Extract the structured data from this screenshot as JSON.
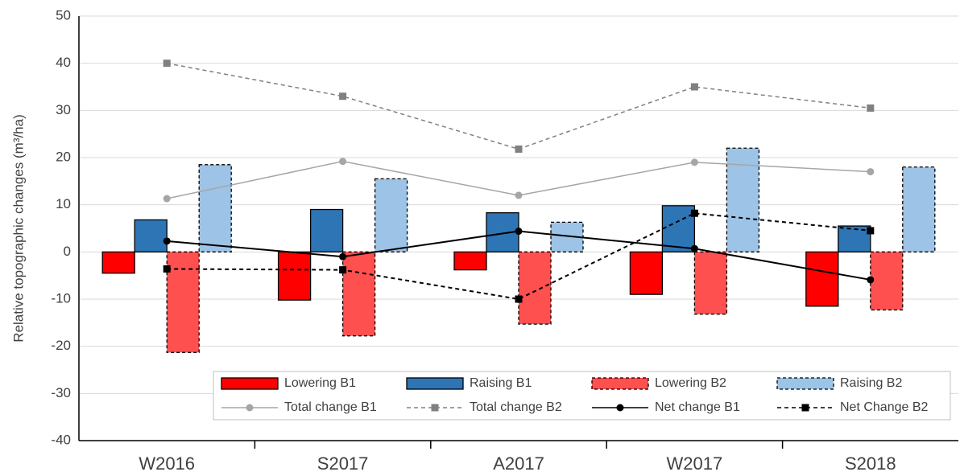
{
  "chart_data": {
    "type": "bar",
    "y_label": "Relative topographic changes (m³/ha)",
    "categories": [
      "W2016",
      "S2017",
      "A2017",
      "W2017",
      "S2018"
    ],
    "ylim": [
      -40,
      50
    ],
    "yticks": [
      -40,
      -30,
      -20,
      -10,
      0,
      10,
      20,
      30,
      40,
      50
    ],
    "grid": true,
    "legend": "bottom-right",
    "series": [
      {
        "name": "Lowering B1",
        "type": "bar",
        "color": "#ff0000",
        "dash": false,
        "values": [
          -4.5,
          -10.2,
          -3.8,
          -9,
          -11.5
        ]
      },
      {
        "name": "Raising B1",
        "type": "bar",
        "color": "#2e75b6",
        "dash": false,
        "values": [
          6.8,
          9,
          8.3,
          9.8,
          5.5
        ]
      },
      {
        "name": "Lowering B2",
        "type": "bar",
        "color": "#ff5050",
        "dash": true,
        "values": [
          -21.3,
          -17.8,
          -15.3,
          -13.2,
          -12.3
        ]
      },
      {
        "name": "Raising B2",
        "type": "bar",
        "color": "#9dc3e6",
        "dash": true,
        "values": [
          18.5,
          15.5,
          6.3,
          22,
          18
        ]
      },
      {
        "name": "Total change B1",
        "type": "line",
        "color": "#a6a6a6",
        "dash": false,
        "marker": "circle",
        "values": [
          11.3,
          19.2,
          12,
          19,
          17
        ]
      },
      {
        "name": "Total change B2",
        "type": "line",
        "color": "#808080",
        "dash": true,
        "marker": "square",
        "values": [
          40,
          33,
          21.8,
          35,
          30.5
        ]
      },
      {
        "name": "Net change B1",
        "type": "line",
        "color": "#000000",
        "dash": false,
        "marker": "circle",
        "values": [
          2.3,
          -1,
          4.4,
          0.7,
          -5.9
        ]
      },
      {
        "name": "Net Change B2",
        "type": "line",
        "color": "#000000",
        "dash": true,
        "marker": "square",
        "values": [
          -3.6,
          -3.8,
          -10,
          8.2,
          4.5
        ]
      }
    ]
  }
}
